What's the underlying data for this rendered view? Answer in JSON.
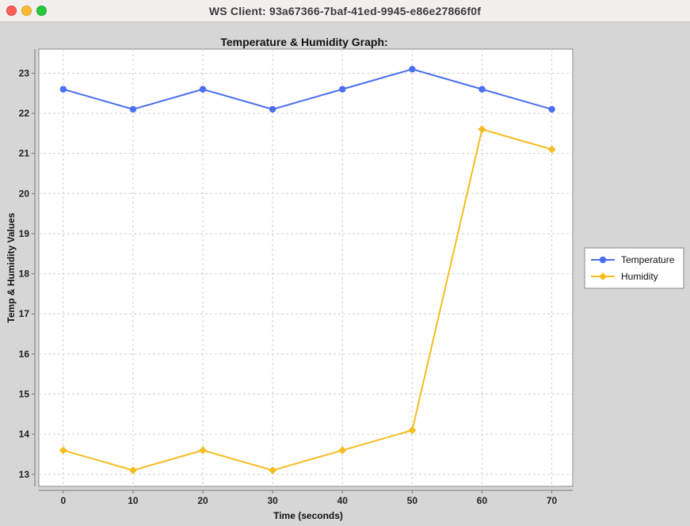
{
  "window": {
    "title": "WS Client: 93a67366-7baf-41ed-9945-e86e27866f0f"
  },
  "chart_data": {
    "type": "line",
    "title": "Temperature & Humidity Graph:",
    "xlabel": "Time (seconds)",
    "ylabel": "Temp & Humidity Values",
    "x": [
      0,
      10,
      20,
      30,
      40,
      50,
      60,
      70
    ],
    "xticks": [
      0,
      10,
      20,
      30,
      40,
      50,
      60,
      70
    ],
    "yticks": [
      13,
      14,
      15,
      16,
      17,
      18,
      19,
      20,
      21,
      22,
      23
    ],
    "xlim": [
      -3.5,
      73
    ],
    "ylim": [
      12.7,
      23.6
    ],
    "grid": true,
    "legend_position": "right",
    "series": [
      {
        "name": "Temperature",
        "color": "#4a6ff0",
        "marker": "circle",
        "values": [
          22.6,
          22.1,
          22.6,
          22.1,
          22.6,
          23.1,
          22.6,
          22.1
        ]
      },
      {
        "name": "Humidity",
        "color": "#f5bd1f",
        "marker": "diamond",
        "values": [
          13.6,
          13.1,
          13.6,
          13.1,
          13.6,
          14.1,
          21.6,
          21.1
        ]
      }
    ]
  }
}
